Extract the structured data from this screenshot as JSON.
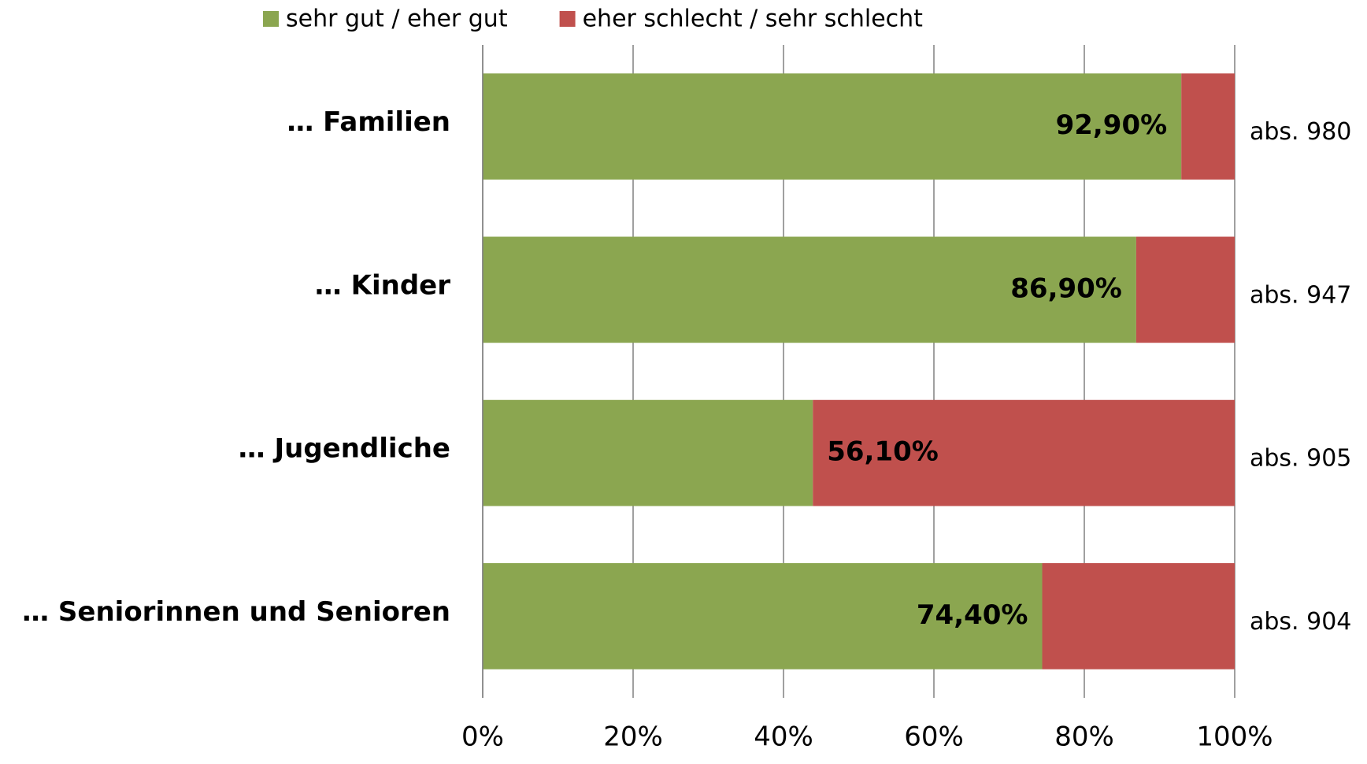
{
  "chart_data": {
    "type": "stacked_barh",
    "categories": [
      "… Familien",
      "… Kinder",
      "… Jugendliche",
      "… Seniorinnen und Senioren"
    ],
    "series": [
      {
        "name": "sehr gut / eher gut",
        "color": "#8ba650",
        "values": [
          92.9,
          86.9,
          43.9,
          74.4
        ],
        "value_labels": [
          "92,90%",
          "86,90%",
          null,
          "74,40%"
        ]
      },
      {
        "name": "eher schlecht / sehr schlecht",
        "color": "#c0504d",
        "values": [
          7.1,
          13.1,
          56.1,
          25.6
        ],
        "value_labels": [
          null,
          null,
          "56,10%",
          null
        ]
      }
    ],
    "annotations": [
      "abs. 980",
      "abs. 947",
      "abs. 905",
      "abs. 904"
    ],
    "xlim": [
      0,
      100
    ],
    "xticks": [
      {
        "value": 0,
        "label": "0%"
      },
      {
        "value": 20,
        "label": "20%"
      },
      {
        "value": 40,
        "label": "40%"
      },
      {
        "value": 60,
        "label": "60%"
      },
      {
        "value": 80,
        "label": "80%"
      },
      {
        "value": 100,
        "label": "100%"
      }
    ],
    "grid": true,
    "legend": "top"
  }
}
